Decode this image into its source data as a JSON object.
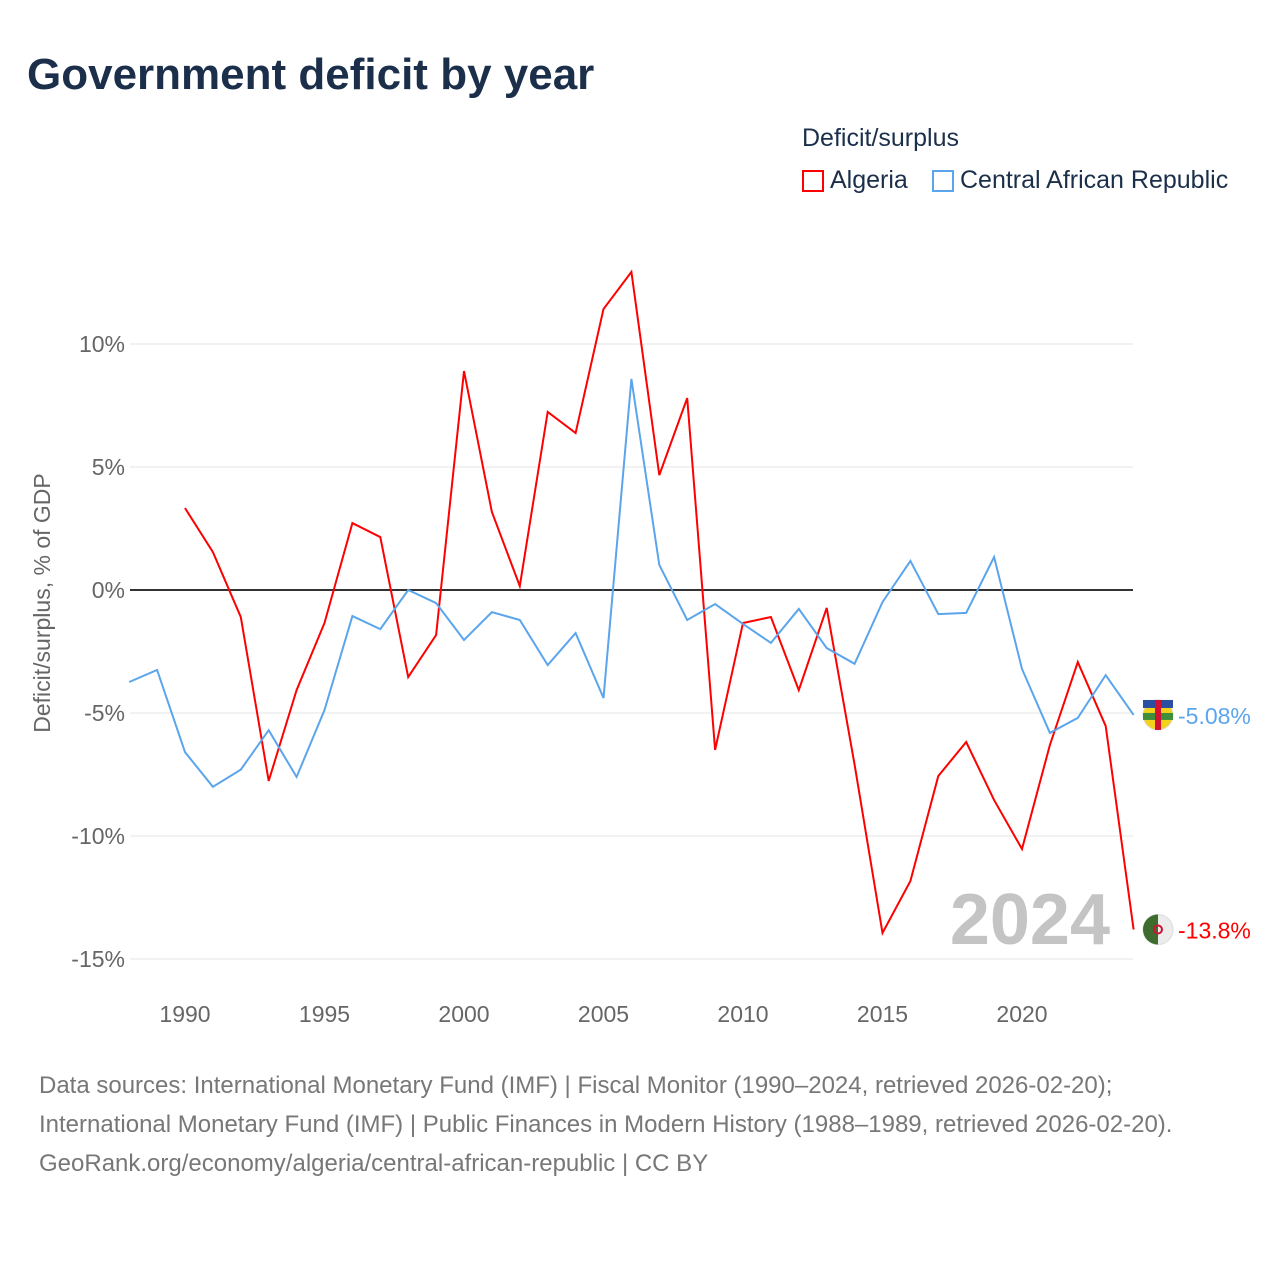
{
  "title": "Government deficit by year",
  "legend": {
    "title": "Deficit/surplus",
    "items": [
      {
        "name": "Algeria",
        "color": "#ff0000"
      },
      {
        "name": "Central African Republic",
        "color": "#5aa5ec"
      }
    ]
  },
  "sources": {
    "text": "Data sources: International Monetary Fund (IMF) | Fiscal Monitor (1990–2024, retrieved 2026-02-20); International Monetary Fund (IMF) | Public Finances in Modern History (1988–1989, retrieved 2026-02-20).",
    "link": "GeoRank.org/economy/algeria/central-african-republic | CC BY"
  },
  "chart_data": {
    "type": "line",
    "ylabel": "Deficit/surplus, % of GDP",
    "xlim": [
      1988,
      2024
    ],
    "ylim": [
      -16,
      13
    ],
    "xticks": [
      1990,
      1995,
      2000,
      2005,
      2010,
      2015,
      2020
    ],
    "yticks": [
      {
        "v": 10,
        "label": "10%"
      },
      {
        "v": 5,
        "label": "5%"
      },
      {
        "v": 0,
        "label": "0%"
      },
      {
        "v": -5,
        "label": "-5%"
      },
      {
        "v": -10,
        "label": "-10%"
      },
      {
        "v": -15,
        "label": "-15%"
      }
    ],
    "year_watermark": "2024",
    "series": [
      {
        "name": "Algeria",
        "color": "#ff0000",
        "end_label": "-13.8%",
        "start": 1990,
        "values": [
          3.33,
          1.54,
          -1.1,
          -7.76,
          -4.07,
          -1.34,
          2.72,
          2.15,
          -3.54,
          -1.83,
          8.9,
          3.17,
          0.16,
          7.24,
          6.38,
          11.42,
          12.93,
          4.67,
          7.8,
          -6.5,
          -1.34,
          -1.1,
          -4.07,
          -0.73,
          -7.1,
          -13.94,
          -11.83,
          -7.56,
          -6.18,
          -8.54,
          -10.53,
          -6.3,
          -2.93,
          -5.53,
          -13.8
        ]
      },
      {
        "name": "Central African Republic",
        "color": "#5aa5ec",
        "end_label": "-5.08%",
        "start": 1988,
        "values": [
          -3.74,
          -3.25,
          -6.59,
          -8.0,
          -7.3,
          -5.7,
          -7.6,
          -4.88,
          -1.06,
          -1.59,
          0,
          -0.53,
          -2.03,
          -0.9,
          -1.22,
          -3.05,
          -1.75,
          -4.39,
          8.58,
          1.02,
          -1.22,
          -0.57,
          -1.38,
          -2.15,
          -0.77,
          -2.36,
          -3.0,
          -0.49,
          1.18,
          -0.98,
          -0.93,
          1.34,
          -3.21,
          -5.81,
          -5.2,
          -3.46,
          -5.08
        ]
      }
    ]
  }
}
